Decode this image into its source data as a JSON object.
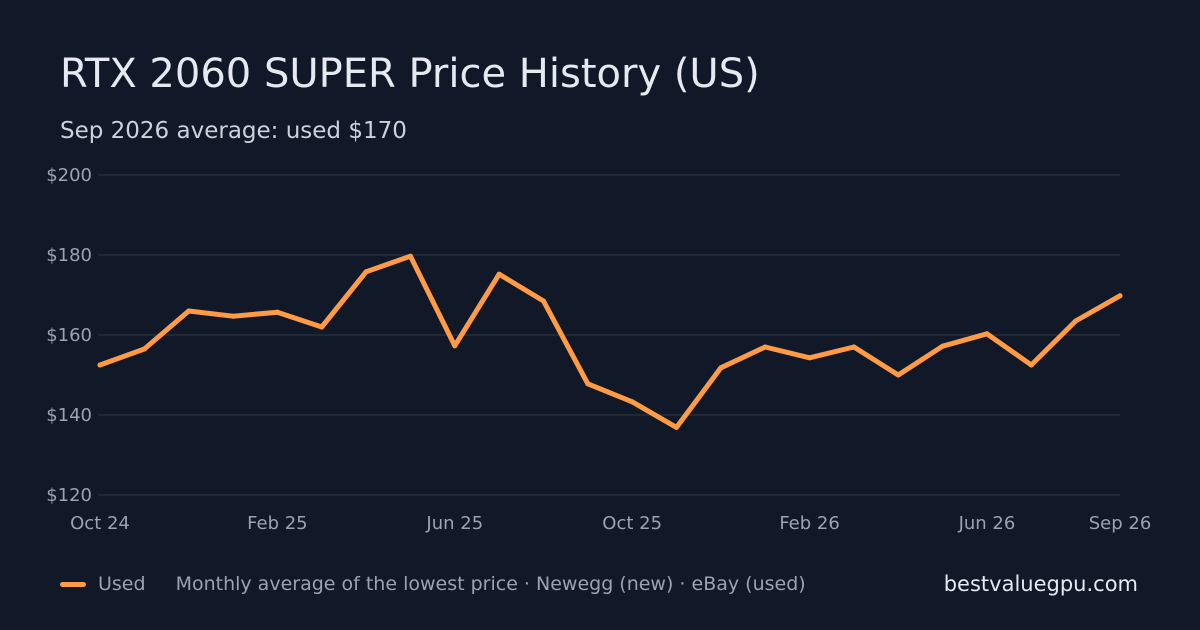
{
  "title": "RTX 2060 SUPER Price History (US)",
  "subtitle": "Sep 2026 average: used $170",
  "legend": {
    "series_label": "Used",
    "note": "Monthly average of the lowest price · Newegg (new) · eBay (used)"
  },
  "brand": "bestvaluegpu.com",
  "colors": {
    "background": "#111827",
    "grid": "#2a3140",
    "used": "#ff9a45"
  },
  "chart_data": {
    "type": "line",
    "title": "RTX 2060 SUPER Price History (US)",
    "subtitle": "Sep 2026 average: used $170",
    "xlabel": "",
    "ylabel": "",
    "x": [
      "2024-10",
      "2024-11",
      "2024-12",
      "2025-01",
      "2025-02",
      "2025-03",
      "2025-04",
      "2025-05",
      "2025-06",
      "2025-07",
      "2025-08",
      "2025-09",
      "2025-10",
      "2025-11",
      "2025-12",
      "2026-01",
      "2026-02",
      "2026-03",
      "2026-04",
      "2026-05",
      "2026-06",
      "2026-07",
      "2026-08",
      "2026-09"
    ],
    "x_ticks": [
      {
        "x": "2024-10",
        "label": "Oct 24"
      },
      {
        "x": "2025-02",
        "label": "Feb 25"
      },
      {
        "x": "2025-06",
        "label": "Jun 25"
      },
      {
        "x": "2025-10",
        "label": "Oct 25"
      },
      {
        "x": "2026-02",
        "label": "Feb 26"
      },
      {
        "x": "2026-06",
        "label": "Jun 26"
      },
      {
        "x": "2026-09",
        "label": "Sep 26"
      }
    ],
    "y_ticks": [
      {
        "value": 200,
        "label": "$200"
      },
      {
        "value": 180,
        "label": "$180"
      },
      {
        "value": 160,
        "label": "$160"
      },
      {
        "value": 140,
        "label": "$140"
      },
      {
        "value": 120,
        "label": "$120"
      }
    ],
    "ylim": [
      120,
      200
    ],
    "grid": true,
    "legend_position": "bottom-left",
    "series": [
      {
        "name": "Used",
        "color": "#ff9a45",
        "values": [
          152.5,
          156.5,
          166,
          164.7,
          165.7,
          162,
          175.8,
          179.7,
          157.3,
          175.2,
          168.5,
          147.8,
          143.3,
          136.9,
          151.8,
          157,
          154.3,
          157,
          150,
          157.2,
          160.3,
          152.5,
          163.5,
          169.8
        ]
      }
    ]
  }
}
